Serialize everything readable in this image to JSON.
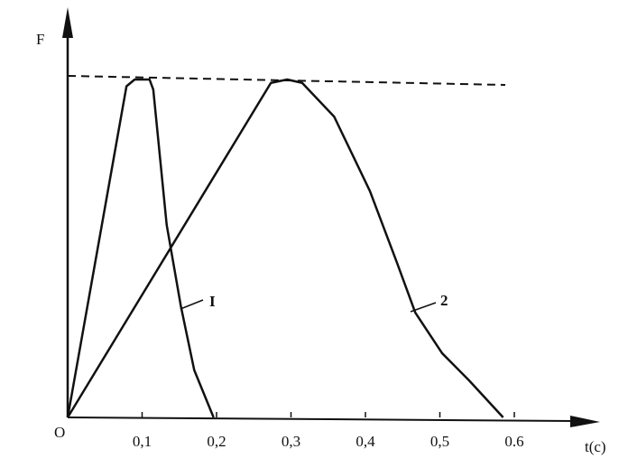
{
  "chart_data": {
    "type": "line",
    "x_label": "t(c)",
    "y_label": "F",
    "origin_label": "O",
    "xlim": [
      0,
      0.72
    ],
    "ylim": [
      0,
      1.2
    ],
    "xticks": [
      {
        "value": 0.1,
        "label": "0,1"
      },
      {
        "value": 0.2,
        "label": "0,2"
      },
      {
        "value": 0.3,
        "label": "0,3"
      },
      {
        "value": 0.4,
        "label": "0,4"
      },
      {
        "value": 0.5,
        "label": "0,5"
      },
      0.6
    ],
    "hline": 1,
    "series": [
      {
        "name": "I",
        "color": "#111",
        "x": [
          0,
          0.079,
          0.09,
          0.11,
          0.115,
          0.133,
          0.152,
          0.17,
          0.196
        ],
        "values": [
          0,
          0.98,
          1.0,
          1.0,
          0.97,
          0.57,
          0.33,
          0.14,
          0
        ]
      },
      {
        "name": "2",
        "color": "#111",
        "x": [
          0,
          0.273,
          0.295,
          0.315,
          0.358,
          0.406,
          0.442,
          0.467,
          0.503,
          0.539,
          0.585
        ],
        "values": [
          0,
          0.99,
          1.0,
          0.99,
          0.89,
          0.67,
          0.46,
          0.31,
          0.19,
          0.11,
          0
        ]
      }
    ]
  }
}
